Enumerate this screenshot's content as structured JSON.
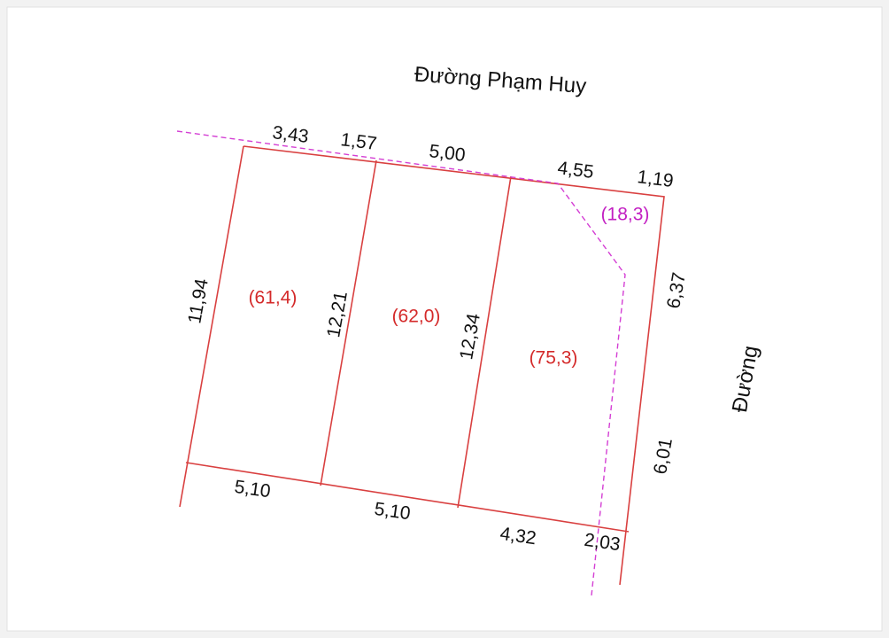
{
  "roads": {
    "top": "Đường Phạm Huy",
    "right": "Đường"
  },
  "top_edges": [
    "3,43",
    "1,57",
    "5,00",
    "4,55",
    "1,19"
  ],
  "side_edges": [
    "11,94",
    "12,21",
    "12,34",
    "6,37",
    "6,01"
  ],
  "bottom_edges": [
    "5,10",
    "5,10",
    "4,32",
    "2,03"
  ],
  "plots": [
    "(61,4)",
    "(62,0)",
    "(75,3)",
    "(18,3)"
  ]
}
